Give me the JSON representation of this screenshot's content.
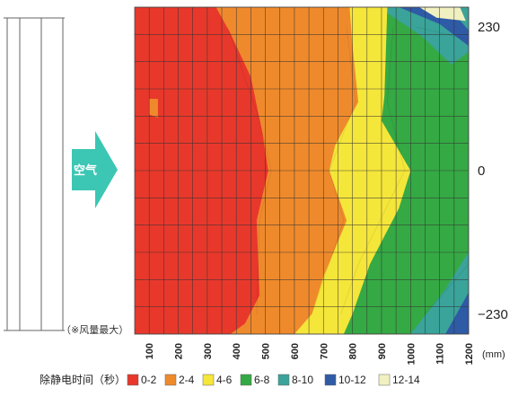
{
  "chart_data": {
    "type": "heatmap",
    "title": "",
    "xlabel": "",
    "ylabel": "",
    "x_unit": "(mm)",
    "x_ticks": [
      100,
      200,
      300,
      400,
      500,
      600,
      700,
      800,
      900,
      1000,
      1100,
      1200
    ],
    "y_ticks": [
      230,
      0,
      -230
    ],
    "y_tick_labels": [
      "230",
      "0",
      "−230"
    ],
    "xlim": [
      100,
      1200
    ],
    "ylim": [
      -230,
      230
    ],
    "grid": true,
    "source_label": "空气",
    "source_side": "left",
    "note": "（※风量最大）",
    "legend": {
      "title": "除静电时间（秒）",
      "placement": "bottom",
      "items": [
        {
          "label": "0-2",
          "color": "#e8382b"
        },
        {
          "label": "2-4",
          "color": "#ef8a2c"
        },
        {
          "label": "4-6",
          "color": "#f5e63a"
        },
        {
          "label": "6-8",
          "color": "#35a944"
        },
        {
          "label": "8-10",
          "color": "#3aa39a"
        },
        {
          "label": "10-12",
          "color": "#2f5aa6"
        },
        {
          "label": "12-14",
          "color": "#f1f0c0"
        }
      ]
    },
    "zone_boundaries": [
      {
        "label": "0-2 | 2-4",
        "points": [
          [
            370,
            230
          ],
          [
            480,
            80
          ],
          [
            520,
            0
          ],
          [
            480,
            -80
          ],
          [
            470,
            -230
          ]
        ]
      },
      {
        "label": "2-4 | 4-6",
        "points": [
          [
            780,
            230
          ],
          [
            810,
            110
          ],
          [
            720,
            0
          ],
          [
            770,
            -80
          ],
          [
            660,
            -230
          ]
        ]
      },
      {
        "label": "4-6 | 6-8",
        "points": [
          [
            940,
            230
          ],
          [
            920,
            110
          ],
          [
            980,
            0
          ],
          [
            820,
            -150
          ],
          [
            760,
            -230
          ]
        ]
      },
      {
        "label": "6-8 | 8-10",
        "points": [
          [
            1020,
            230
          ],
          [
            1200,
            210
          ]
        ]
      },
      {
        "label": "6-8 | 8-10 (lower)",
        "points": [
          [
            1050,
            -230
          ],
          [
            1200,
            -150
          ]
        ]
      }
    ]
  }
}
